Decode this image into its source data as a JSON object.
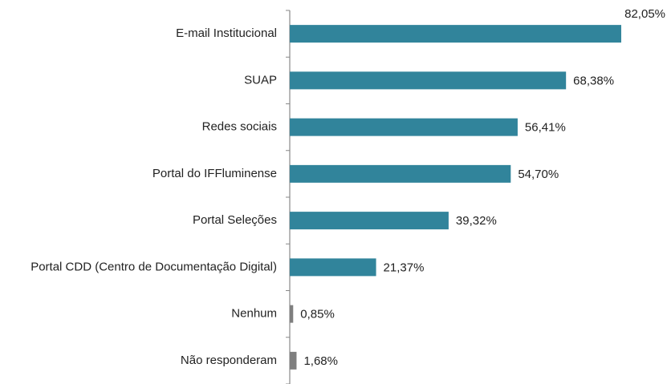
{
  "chart_data": {
    "type": "bar",
    "orientation": "horizontal",
    "categories": [
      "E-mail Institucional",
      "SUAP",
      "Redes sociais",
      "Portal do IFFluminense",
      "Portal Seleções",
      "Portal CDD (Centro de Documentação Digital)",
      "Nenhum",
      "Não responderam"
    ],
    "values": [
      82.05,
      68.38,
      56.41,
      54.7,
      39.32,
      21.37,
      0.85,
      1.68
    ],
    "value_labels": [
      "82,05%",
      "68,38%",
      "56,41%",
      "54,70%",
      "39,32%",
      "21,37%",
      "0,85%",
      "1,68%"
    ],
    "colors": [
      "#31849b",
      "#31849b",
      "#31849b",
      "#31849b",
      "#31849b",
      "#31849b",
      "#7f7f7f",
      "#7f7f7f"
    ],
    "xlim": [
      0,
      90
    ],
    "grid": false
  }
}
